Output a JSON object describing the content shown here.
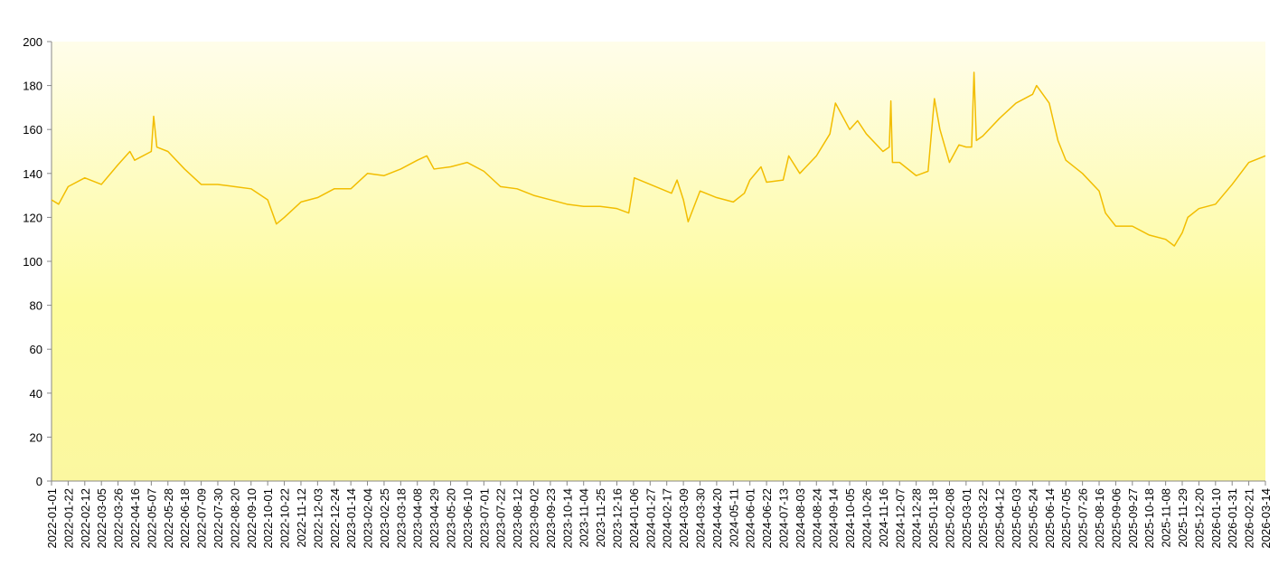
{
  "chart_data": {
    "type": "line",
    "color": "#f2bd00",
    "grid": false,
    "x": [
      "2022-01-01",
      "2022-01-10",
      "2022-01-22",
      "2022-02-12",
      "2022-03-05",
      "2022-03-26",
      "2022-04-10",
      "2022-04-16",
      "2022-05-07",
      "2022-05-10",
      "2022-05-14",
      "2022-05-28",
      "2022-06-18",
      "2022-07-09",
      "2022-07-30",
      "2022-08-20",
      "2022-09-10",
      "2022-10-01",
      "2022-10-12",
      "2022-10-22",
      "2022-11-12",
      "2022-12-03",
      "2022-12-24",
      "2023-01-14",
      "2023-02-04",
      "2023-02-25",
      "2023-03-18",
      "2023-04-08",
      "2023-04-20",
      "2023-04-29",
      "2023-05-20",
      "2023-06-10",
      "2023-07-01",
      "2023-07-22",
      "2023-08-12",
      "2023-09-02",
      "2023-09-23",
      "2023-10-14",
      "2023-11-04",
      "2023-11-25",
      "2023-12-16",
      "2023-12-31",
      "2024-01-05",
      "2024-01-07",
      "2024-02-23",
      "2024-03-01",
      "2024-03-09",
      "2024-03-15",
      "2024-03-30",
      "2024-04-20",
      "2024-05-11",
      "2024-05-25",
      "2024-06-01",
      "2024-06-15",
      "2024-06-22",
      "2024-07-13",
      "2024-07-20",
      "2024-08-03",
      "2024-08-24",
      "2024-09-10",
      "2024-09-17",
      "2024-10-05",
      "2024-10-15",
      "2024-10-26",
      "2024-11-16",
      "2024-11-24",
      "2024-11-26",
      "2024-11-28",
      "2024-12-07",
      "2024-12-28",
      "2025-01-12",
      "2025-01-20",
      "2025-01-27",
      "2025-02-08",
      "2025-02-20",
      "2025-03-01",
      "2025-03-08",
      "2025-03-11",
      "2025-03-14",
      "2025-03-22",
      "2025-04-12",
      "2025-05-03",
      "2025-05-24",
      "2025-05-29",
      "2025-06-14",
      "2025-06-25",
      "2025-07-05",
      "2025-07-26",
      "2025-08-16",
      "2025-08-24",
      "2025-09-06",
      "2025-09-27",
      "2025-10-18",
      "2025-11-08",
      "2025-11-19",
      "2025-11-29",
      "2025-12-06",
      "2025-12-20",
      "2026-01-10",
      "2026-01-31",
      "2026-02-21",
      "2026-03-14"
    ],
    "values": [
      128,
      126,
      134,
      138,
      135,
      144,
      150,
      146,
      150,
      166,
      152,
      150,
      142,
      135,
      135,
      134,
      133,
      128,
      117,
      120,
      127,
      129,
      133,
      133,
      140,
      139,
      142,
      146,
      148,
      142,
      143,
      145,
      141,
      134,
      133,
      130,
      128,
      126,
      125,
      125,
      124,
      122,
      133,
      138,
      131,
      137,
      128,
      118,
      132,
      129,
      127,
      131,
      137,
      143,
      136,
      137,
      148,
      140,
      148,
      158,
      172,
      160,
      164,
      158,
      150,
      152,
      173,
      145,
      145,
      139,
      141,
      174,
      160,
      145,
      153,
      152,
      152,
      186,
      155,
      157,
      165,
      172,
      176,
      180,
      172,
      155,
      146,
      140,
      132,
      122,
      116,
      116,
      112,
      110,
      107,
      113,
      120,
      124,
      126,
      135,
      145,
      148
    ],
    "xlim": [
      "2022-01-01",
      "2026-03-14"
    ],
    "xticks": [
      "2022-01-01",
      "2022-01-22",
      "2022-02-12",
      "2022-03-05",
      "2022-03-26",
      "2022-04-16",
      "2022-05-07",
      "2022-05-28",
      "2022-06-18",
      "2022-07-09",
      "2022-07-30",
      "2022-08-20",
      "2022-09-10",
      "2022-10-01",
      "2022-10-22",
      "2022-11-12",
      "2022-12-03",
      "2022-12-24",
      "2023-01-14",
      "2023-02-04",
      "2023-02-25",
      "2023-03-18",
      "2023-04-08",
      "2023-04-29",
      "2023-05-20",
      "2023-06-10",
      "2023-07-01",
      "2023-07-22",
      "2023-08-12",
      "2023-09-02",
      "2023-09-23",
      "2023-10-14",
      "2023-11-04",
      "2023-11-25",
      "2023-12-16",
      "2024-01-06",
      "2024-01-27",
      "2024-02-17",
      "2024-03-09",
      "2024-03-30",
      "2024-04-20",
      "2024-05-11",
      "2024-06-01",
      "2024-06-22",
      "2024-07-13",
      "2024-08-03",
      "2024-08-24",
      "2024-09-14",
      "2024-10-05",
      "2024-10-26",
      "2024-11-16",
      "2024-12-07",
      "2024-12-28",
      "2025-01-18",
      "2025-02-08",
      "2025-03-01",
      "2025-03-22",
      "2025-04-12",
      "2025-05-03",
      "2025-05-24",
      "2025-06-14",
      "2025-07-05",
      "2025-07-26",
      "2025-08-16",
      "2025-09-06",
      "2025-09-27",
      "2025-10-18",
      "2025-11-08",
      "2025-11-29",
      "2025-12-20",
      "2026-01-10",
      "2026-01-31",
      "2026-02-21",
      "2026-03-14"
    ],
    "ylim": [
      0,
      200
    ],
    "yticks": [
      0,
      20,
      40,
      60,
      80,
      100,
      120,
      140,
      160,
      180,
      200
    ]
  }
}
